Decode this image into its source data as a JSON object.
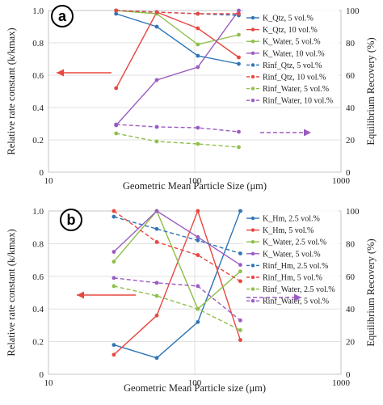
{
  "chart_data": [
    {
      "type": "line",
      "panel_label": "a",
      "xlabel": "Geometric Mean Particle Size (μm)",
      "ylabel": "Relative rate constant (k/kmax)",
      "y2label": "Equilibrium Recovery (%)",
      "x_scale": "log",
      "xlim": [
        10,
        1000
      ],
      "ylim": [
        0,
        1.0
      ],
      "y2lim": [
        0,
        100
      ],
      "x_ticks": [
        "10",
        "100",
        "1000"
      ],
      "y_ticks": [
        "0",
        "0.2",
        "0.4",
        "0.6",
        "0.8",
        "1.0"
      ],
      "y2_ticks": [
        "0",
        "20",
        "40",
        "60",
        "80",
        "100"
      ],
      "grid": true,
      "legend_position": "right",
      "series": [
        {
          "name": "K_Qtz, 5 vol.%",
          "axis": "left",
          "style": "solid",
          "color": "#2e75b6",
          "x": [
            29,
            55,
            105,
            200
          ],
          "y": [
            0.98,
            0.9,
            0.72,
            0.67
          ]
        },
        {
          "name": "K_Qtz, 10 vol.%",
          "axis": "left",
          "style": "solid",
          "color": "#e8473f",
          "x": [
            29,
            55,
            105,
            200
          ],
          "y": [
            0.52,
            0.99,
            0.89,
            0.71
          ]
        },
        {
          "name": "K_Water, 5 vol.%",
          "axis": "left",
          "style": "solid",
          "color": "#8fbf4a",
          "x": [
            29,
            55,
            105,
            200
          ],
          "y": [
            1.0,
            0.98,
            0.79,
            0.85
          ]
        },
        {
          "name": "K_Water, 10 vol.%",
          "axis": "left",
          "style": "solid",
          "color": "#9b5bc2",
          "x": [
            29,
            55,
            105,
            200
          ],
          "y": [
            0.29,
            0.57,
            0.65,
            1.0
          ]
        },
        {
          "name": "Rinf_Qtz, 5 vol.%",
          "axis": "right",
          "style": "dashed",
          "color": "#2e75b6",
          "x": [
            29,
            55,
            105,
            200
          ],
          "y": [
            100,
            99,
            98,
            97
          ]
        },
        {
          "name": "Rinf_Qtz, 10 vol.%",
          "axis": "right",
          "style": "dashed",
          "color": "#e8473f",
          "x": [
            29,
            55,
            105,
            200
          ],
          "y": [
            100,
            99,
            98,
            98
          ]
        },
        {
          "name": "Rinf_Water, 5 vol.%",
          "axis": "right",
          "style": "dashed",
          "color": "#8fbf4a",
          "x": [
            29,
            55,
            105,
            200
          ],
          "y": [
            24,
            19,
            17.5,
            15.5
          ]
        },
        {
          "name": "Rinf_Water, 10 vol.%",
          "axis": "right",
          "style": "dashed",
          "color": "#9b5bc2",
          "x": [
            29,
            55,
            105,
            200
          ],
          "y": [
            29.5,
            28,
            27.5,
            25
          ]
        }
      ]
    },
    {
      "type": "line",
      "panel_label": "b",
      "xlabel": "Geometric Mean Particle size (μm)",
      "ylabel": "Relative rate constant (k/kmax)",
      "y2label": "Equilibrium Recovery (%)",
      "x_scale": "log",
      "xlim": [
        10,
        1000
      ],
      "ylim": [
        0,
        1.0
      ],
      "y2lim": [
        0,
        100
      ],
      "x_ticks": [
        "10",
        "100",
        "1000"
      ],
      "y_ticks": [
        "0",
        "0.2",
        "0.4",
        "0.6",
        "0.8",
        "1.0"
      ],
      "y2_ticks": [
        "0",
        "20",
        "40",
        "60",
        "80",
        "100"
      ],
      "grid": true,
      "legend_position": "right",
      "series": [
        {
          "name": "K_Hm, 2.5 vol.%",
          "axis": "left",
          "style": "solid",
          "color": "#2e75b6",
          "x": [
            28,
            55,
            105,
            205
          ],
          "y": [
            0.18,
            0.1,
            0.32,
            1.0
          ]
        },
        {
          "name": "K_Hm, 5 vol.%",
          "axis": "left",
          "style": "solid",
          "color": "#e8473f",
          "x": [
            28,
            55,
            105,
            205
          ],
          "y": [
            0.12,
            0.36,
            1.0,
            0.21
          ]
        },
        {
          "name": "K_Water, 2.5 vol.%",
          "axis": "left",
          "style": "solid",
          "color": "#8fbf4a",
          "x": [
            28,
            55,
            105,
            205
          ],
          "y": [
            0.69,
            1.0,
            0.4,
            0.63
          ]
        },
        {
          "name": "K_Water, 5 vol.%",
          "axis": "left",
          "style": "solid",
          "color": "#9b5bc2",
          "x": [
            28,
            55,
            105,
            205
          ],
          "y": [
            0.75,
            1.0,
            0.84,
            0.67
          ]
        },
        {
          "name": "Rinf_Hm, 2.5 vol.%",
          "axis": "right",
          "style": "dashed",
          "color": "#2e75b6",
          "x": [
            28,
            55,
            105,
            205
          ],
          "y": [
            96.5,
            89,
            82,
            74
          ]
        },
        {
          "name": "Rinf_Hm, 5 vol.%",
          "axis": "right",
          "style": "dashed",
          "color": "#e8473f",
          "x": [
            28,
            55,
            105,
            205
          ],
          "y": [
            100,
            81,
            73,
            57
          ]
        },
        {
          "name": "Rinf_Water, 2.5 vol.%",
          "axis": "right",
          "style": "dashed",
          "color": "#8fbf4a",
          "x": [
            28,
            55,
            105,
            205
          ],
          "y": [
            54,
            48,
            40,
            27
          ]
        },
        {
          "name": "Rinf_Water, 5 vol.%",
          "axis": "right",
          "style": "dashed",
          "color": "#9b5bc2",
          "x": [
            28,
            55,
            105,
            205
          ],
          "y": [
            59,
            56,
            54,
            33
          ]
        }
      ]
    }
  ]
}
